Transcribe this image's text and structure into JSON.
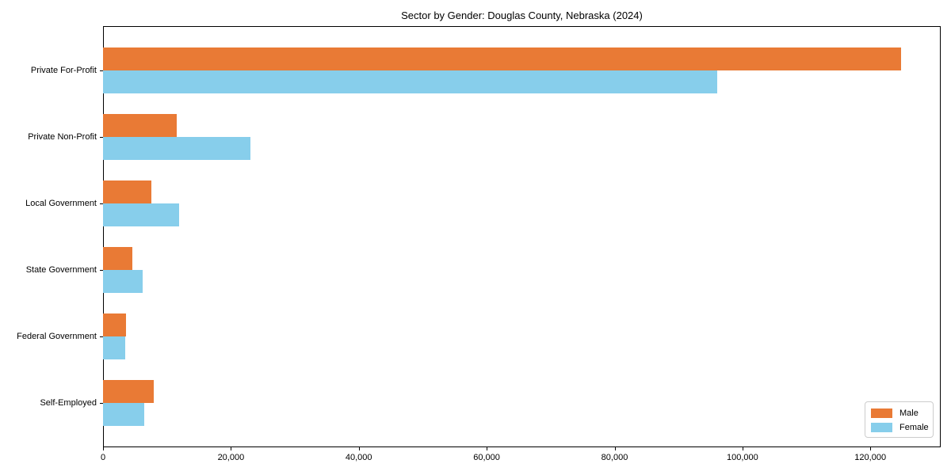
{
  "chart_data": {
    "type": "bar",
    "orientation": "horizontal",
    "title": "Sector by Gender: Douglas County, Nebraska (2024)",
    "categories": [
      "Private For-Profit",
      "Private Non-Profit",
      "Local Government",
      "State Government",
      "Federal Government",
      "Self-Employed"
    ],
    "series": [
      {
        "name": "Male",
        "color": "#E97A35",
        "values": [
          124800,
          11500,
          7600,
          4600,
          3600,
          7900
        ]
      },
      {
        "name": "Female",
        "color": "#87CEEB",
        "values": [
          96000,
          23000,
          11900,
          6200,
          3500,
          6450
        ]
      }
    ],
    "xlabel": "",
    "ylabel": "",
    "xlim": [
      0,
      131000
    ],
    "xticks": [
      0,
      20000,
      40000,
      60000,
      80000,
      100000,
      120000
    ],
    "xtick_labels": [
      "0",
      "20,000",
      "40,000",
      "60,000",
      "80,000",
      "100,000",
      "120,000"
    ],
    "grid": false,
    "legend_position": "lower right",
    "background": "#ffffff",
    "spine_color": "#000000"
  }
}
